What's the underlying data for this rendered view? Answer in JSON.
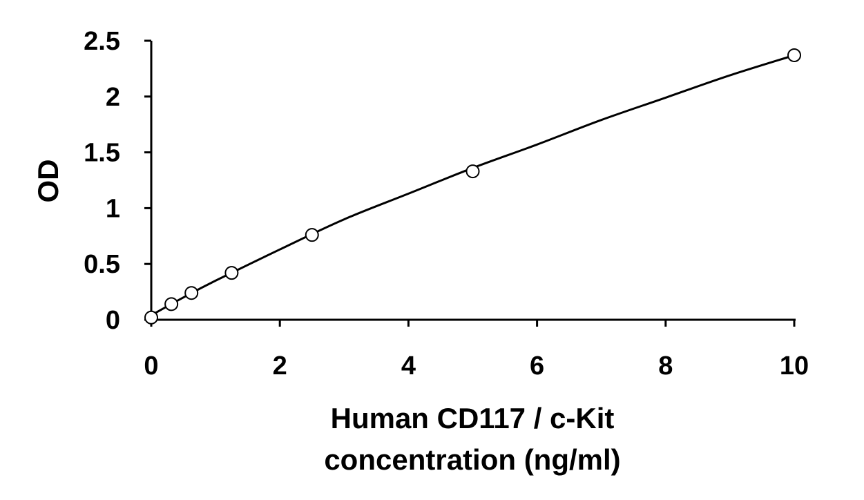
{
  "chart_data": {
    "type": "scatter",
    "title": "",
    "xlabel": [
      "Human CD117 / c-Kit",
      "concentration (ng/ml)"
    ],
    "ylabel": "OD",
    "xlim": [
      0,
      10
    ],
    "ylim": [
      0,
      2.5
    ],
    "x_ticks": [
      0,
      2,
      4,
      6,
      8,
      10
    ],
    "y_ticks": [
      0,
      0.5,
      1,
      1.5,
      2,
      2.5
    ],
    "x_tick_labels": [
      "0",
      "2",
      "4",
      "6",
      "8",
      "10"
    ],
    "y_tick_labels": [
      "0",
      "0.5",
      "1",
      "1.5",
      "2",
      "2.5"
    ],
    "grid": false,
    "legend": false,
    "marker": "open-circle",
    "fit": "smooth-curve",
    "series": [
      {
        "x": [
          0,
          0.313,
          0.625,
          1.25,
          2.5,
          5,
          10
        ],
        "y": [
          0.02,
          0.14,
          0.24,
          0.42,
          0.76,
          1.33,
          2.37
        ]
      }
    ],
    "fit_curve": {
      "x": [
        0,
        0.5,
        1,
        2,
        3,
        4,
        5,
        6,
        7,
        8,
        9,
        10
      ],
      "y": [
        0.04,
        0.2,
        0.35,
        0.63,
        0.9,
        1.13,
        1.36,
        1.57,
        1.79,
        1.99,
        2.19,
        2.37
      ]
    }
  }
}
